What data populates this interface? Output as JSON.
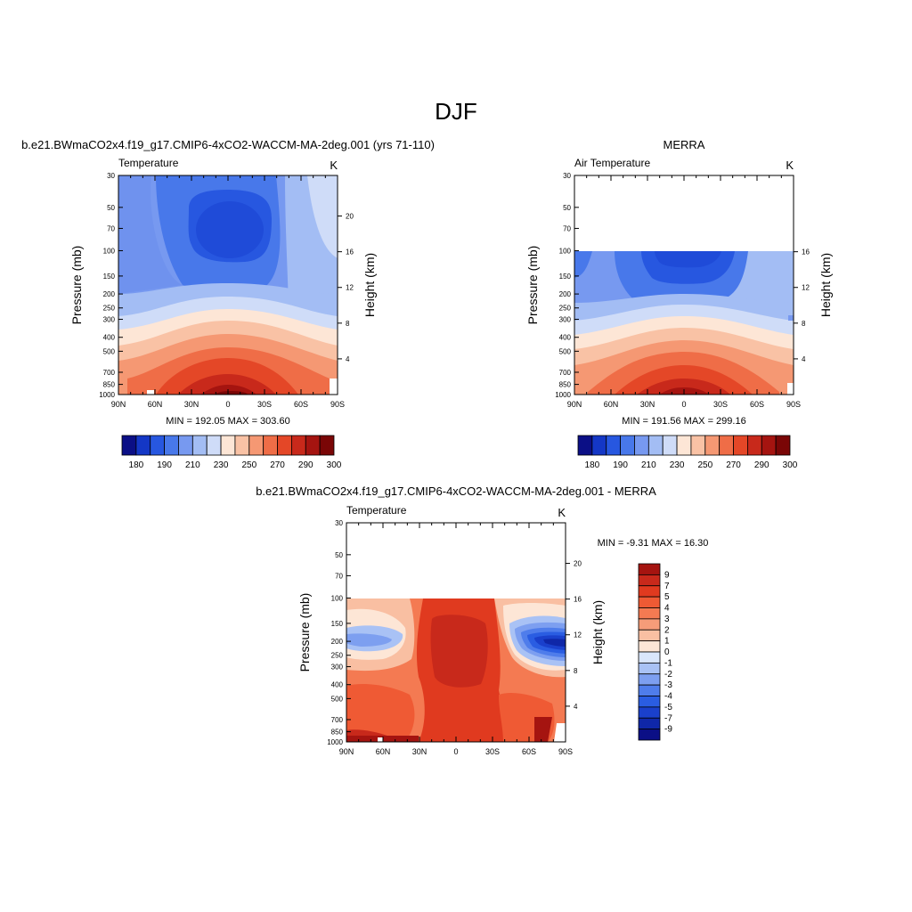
{
  "figure": {
    "title": "DJF"
  },
  "chart_data": [
    {
      "type": "heatmap",
      "title": "b.e21.BWmaCO2x4.f19_g17.CMIP6-4xCO2-WACCM-MA-2deg.001 (yrs 71-110)",
      "variable_label": "Temperature",
      "units": "K",
      "xlabel": "",
      "ylabel": "Pressure (mb)",
      "ylabel_right": "Height (km)",
      "x_ticks": [
        "90N",
        "60N",
        "30N",
        "0",
        "30S",
        "60S",
        "90S"
      ],
      "y_ticks": [
        "30",
        "50",
        "70",
        "100",
        "150",
        "200",
        "250",
        "300",
        "400",
        "500",
        "700",
        "850",
        "1000"
      ],
      "height_ticks": [
        "20",
        "16",
        "12",
        "8",
        "4"
      ],
      "ylim": [
        1000,
        30
      ],
      "y_scale": "log",
      "stats": "MIN = 192.05  MAX = 303.60",
      "colorbar": {
        "orientation": "horizontal",
        "levels": [
          "180",
          "190",
          "210",
          "230",
          "250",
          "270",
          "290",
          "300"
        ],
        "colors": [
          "#0b0f86",
          "#1437c6",
          "#2757e0",
          "#4878ea",
          "#7799f0",
          "#a3bdf4",
          "#cfdcf8",
          "#fde6d6",
          "#f9c2a5",
          "#f59873",
          "#ef6d47",
          "#e44727",
          "#c8291b",
          "#a51410",
          "#7a0606"
        ]
      },
      "bands": [
        {
          "from": "#a51410",
          "to": "#7a0606",
          "approx_K": 300
        },
        {
          "range": "top_plateau",
          "approx_K": 205
        }
      ]
    },
    {
      "type": "heatmap",
      "title": "MERRA",
      "variable_label": "Air Temperature",
      "units": "K",
      "xlabel": "",
      "ylabel": "Pressure (mb)",
      "ylabel_right": "Height (km)",
      "x_ticks": [
        "90N",
        "60N",
        "30N",
        "0",
        "30S",
        "60S",
        "90S"
      ],
      "y_ticks": [
        "30",
        "50",
        "70",
        "100",
        "150",
        "200",
        "250",
        "300",
        "400",
        "500",
        "700",
        "850",
        "1000"
      ],
      "height_ticks": [
        "16",
        "12",
        "8",
        "4"
      ],
      "ylim": [
        1000,
        30
      ],
      "y_scale": "log",
      "data_top_pressure": 100,
      "stats": "MIN = 191.56  MAX = 299.16",
      "colorbar": {
        "orientation": "horizontal",
        "levels": [
          "180",
          "190",
          "210",
          "230",
          "250",
          "270",
          "290",
          "300"
        ],
        "colors": [
          "#0b0f86",
          "#1437c6",
          "#2757e0",
          "#4878ea",
          "#7799f0",
          "#a3bdf4",
          "#cfdcf8",
          "#fde6d6",
          "#f9c2a5",
          "#f59873",
          "#ef6d47",
          "#e44727",
          "#c8291b",
          "#a51410",
          "#7a0606"
        ]
      }
    },
    {
      "type": "heatmap",
      "title": "b.e21.BWmaCO2x4.f19_g17.CMIP6-4xCO2-WACCM-MA-2deg.001 - MERRA",
      "variable_label": "Temperature",
      "units": "K",
      "xlabel": "",
      "ylabel": "Pressure (mb)",
      "ylabel_right": "Height (km)",
      "x_ticks": [
        "90N",
        "60N",
        "30N",
        "0",
        "30S",
        "60S",
        "90S"
      ],
      "y_ticks": [
        "30",
        "50",
        "70",
        "100",
        "150",
        "200",
        "250",
        "300",
        "400",
        "500",
        "700",
        "850",
        "1000"
      ],
      "height_ticks": [
        "20",
        "16",
        "12",
        "8",
        "4"
      ],
      "ylim": [
        1000,
        30
      ],
      "y_scale": "log",
      "data_top_pressure": 100,
      "stats": "MIN =  -9.31  MAX =  16.30",
      "colorbar": {
        "orientation": "vertical",
        "levels": [
          "9",
          "7",
          "5",
          "4",
          "3",
          "2",
          "1",
          "0",
          "-1",
          "-2",
          "-3",
          "-4",
          "-5",
          "-7",
          "-9"
        ],
        "colors": [
          "#a51410",
          "#c8291b",
          "#e03a1f",
          "#ef5a34",
          "#f47a52",
          "#f69c79",
          "#f9bfa2",
          "#fde6d6",
          "#d9e6fb",
          "#a9c2f5",
          "#7d9ff0",
          "#4f7deb",
          "#2a5de2",
          "#1a40cc",
          "#0f27a8",
          "#0b0f86"
        ]
      }
    }
  ]
}
